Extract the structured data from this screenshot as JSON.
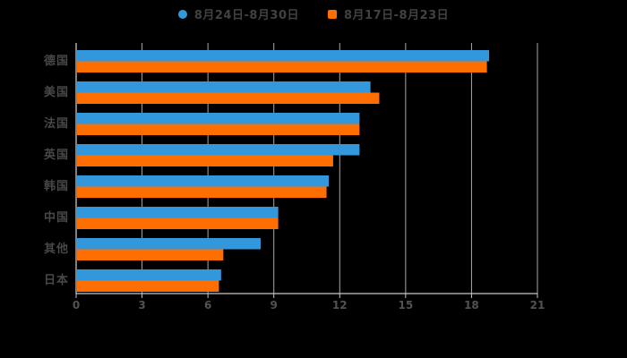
{
  "chart_data": {
    "type": "bar",
    "orientation": "horizontal",
    "title": "",
    "categories": [
      "德国",
      "美国",
      "法国",
      "英国",
      "韩国",
      "中国",
      "其他",
      "日本"
    ],
    "series": [
      {
        "name": "8月24日-8月30日",
        "color": "#3398db",
        "marker": "circle",
        "values": [
          18.8,
          13.4,
          12.9,
          12.9,
          11.5,
          9.2,
          8.4,
          6.6
        ]
      },
      {
        "name": "8月17日-8月23日",
        "color": "#ff6e00",
        "marker": "square",
        "values": [
          18.7,
          13.8,
          12.9,
          11.7,
          11.4,
          9.2,
          6.7,
          6.5
        ]
      }
    ],
    "xlim": [
      0,
      21
    ],
    "xticks": [
      0,
      3,
      6,
      9,
      12,
      15,
      18,
      21
    ],
    "grid": true,
    "legend_position": "top",
    "background_color": "#000000",
    "grid_color": "#c6c6c6",
    "axis_text_color": "#525252",
    "legend_text_color": "#414141"
  }
}
